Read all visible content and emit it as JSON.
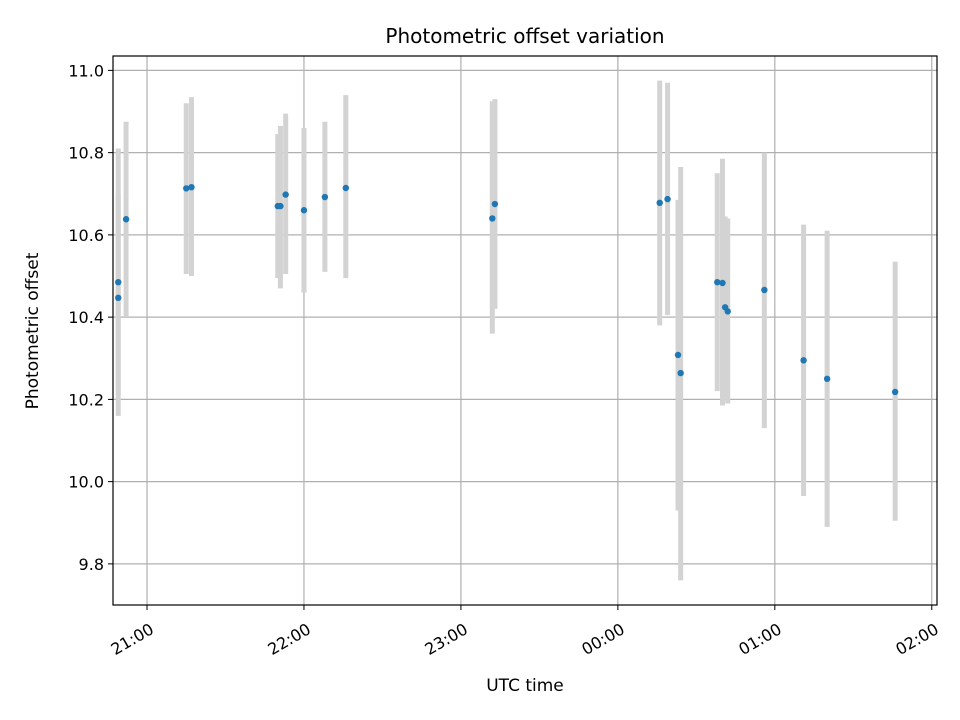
{
  "chart_data": {
    "type": "scatter",
    "title": "Photometric offset variation",
    "xlabel": "UTC time",
    "ylabel": "Photometric offset",
    "grid": true,
    "legend": "none",
    "colors": {
      "point": "#1f77b4",
      "errorbar": "#d3d3d3",
      "grid": "#b0b0b0",
      "axis": "#000000"
    },
    "x_unit": "UTC time (HH:MM)",
    "xlim": [
      "20:47",
      "02:02"
    ],
    "ylim": [
      9.7,
      11.035
    ],
    "x_ticks": [
      {
        "t": "21:00",
        "label": "21:00"
      },
      {
        "t": "22:00",
        "label": "22:00"
      },
      {
        "t": "23:00",
        "label": "23:00"
      },
      {
        "t": "00:00",
        "label": "00:00"
      },
      {
        "t": "01:00",
        "label": "01:00"
      },
      {
        "t": "02:00",
        "label": "02:00"
      }
    ],
    "y_ticks": [
      {
        "v": 9.8,
        "label": "9.8"
      },
      {
        "v": 10.0,
        "label": "10.0"
      },
      {
        "v": 10.2,
        "label": "10.2"
      },
      {
        "v": 10.4,
        "label": "10.4"
      },
      {
        "v": 10.6,
        "label": "10.6"
      },
      {
        "v": 10.8,
        "label": "10.8"
      },
      {
        "v": 11.0,
        "label": "11.0"
      }
    ],
    "points": [
      {
        "t": "20:49",
        "y": 10.485,
        "lo": 10.16,
        "hi": 10.81
      },
      {
        "t": "20:49",
        "y": 10.447,
        "lo": 10.21,
        "hi": 10.7
      },
      {
        "t": "20:52",
        "y": 10.638,
        "lo": 10.4,
        "hi": 10.875
      },
      {
        "t": "21:15",
        "y": 10.713,
        "lo": 10.505,
        "hi": 10.92
      },
      {
        "t": "21:17",
        "y": 10.716,
        "lo": 10.5,
        "hi": 10.935
      },
      {
        "t": "21:50",
        "y": 10.67,
        "lo": 10.495,
        "hi": 10.845
      },
      {
        "t": "21:51",
        "y": 10.67,
        "lo": 10.47,
        "hi": 10.865
      },
      {
        "t": "21:53",
        "y": 10.698,
        "lo": 10.505,
        "hi": 10.895
      },
      {
        "t": "22:00",
        "y": 10.66,
        "lo": 10.46,
        "hi": 10.86
      },
      {
        "t": "22:08",
        "y": 10.692,
        "lo": 10.51,
        "hi": 10.875
      },
      {
        "t": "22:16",
        "y": 10.714,
        "lo": 10.495,
        "hi": 10.94
      },
      {
        "t": "23:12",
        "y": 10.64,
        "lo": 10.36,
        "hi": 10.925
      },
      {
        "t": "23:13",
        "y": 10.675,
        "lo": 10.42,
        "hi": 10.93
      },
      {
        "t": "00:16",
        "y": 10.678,
        "lo": 10.38,
        "hi": 10.975
      },
      {
        "t": "00:19",
        "y": 10.687,
        "lo": 10.405,
        "hi": 10.97
      },
      {
        "t": "00:23",
        "y": 10.308,
        "lo": 9.93,
        "hi": 10.685
      },
      {
        "t": "00:24",
        "y": 10.264,
        "lo": 9.76,
        "hi": 10.765
      },
      {
        "t": "00:38",
        "y": 10.485,
        "lo": 10.22,
        "hi": 10.75
      },
      {
        "t": "00:40",
        "y": 10.483,
        "lo": 10.185,
        "hi": 10.785
      },
      {
        "t": "00:41",
        "y": 10.424,
        "lo": 10.205,
        "hi": 10.645
      },
      {
        "t": "00:42",
        "y": 10.414,
        "lo": 10.19,
        "hi": 10.64
      },
      {
        "t": "00:56",
        "y": 10.466,
        "lo": 10.13,
        "hi": 10.8
      },
      {
        "t": "01:11",
        "y": 10.295,
        "lo": 9.965,
        "hi": 10.625
      },
      {
        "t": "01:20",
        "y": 10.25,
        "lo": 9.89,
        "hi": 10.61
      },
      {
        "t": "01:46",
        "y": 10.218,
        "lo": 9.905,
        "hi": 10.535
      }
    ]
  }
}
